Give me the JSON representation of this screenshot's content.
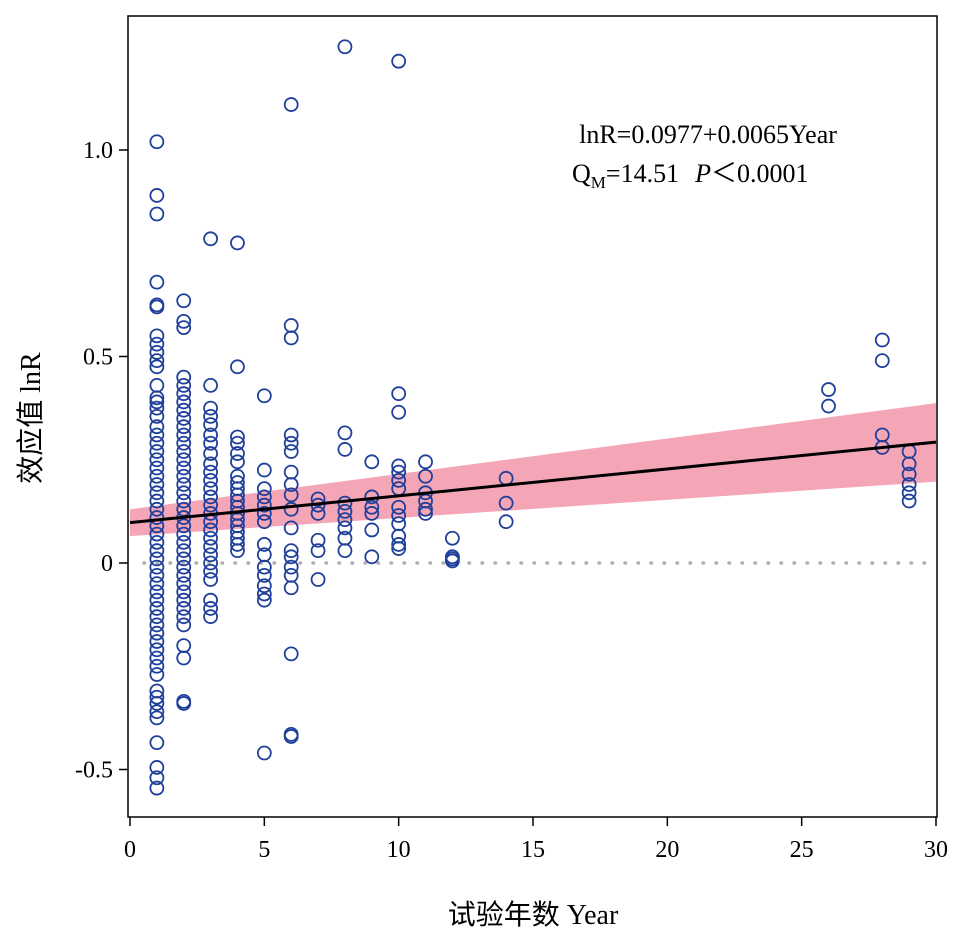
{
  "chart_data": {
    "type": "scatter",
    "xlabel": "试验年数 Year",
    "ylabel": "效应值 lnR",
    "xlim": [
      0,
      30
    ],
    "ylim": [
      -0.56,
      1.3
    ],
    "x_ticks": [
      {
        "value": 0,
        "label": "0"
      },
      {
        "value": 5,
        "label": "5"
      },
      {
        "value": 10,
        "label": "10"
      },
      {
        "value": 15,
        "label": "15"
      },
      {
        "value": 20,
        "label": "20"
      },
      {
        "value": 25,
        "label": "25"
      },
      {
        "value": 30,
        "label": "30"
      }
    ],
    "y_ticks": [
      {
        "value": -0.5,
        "label": "-0.5"
      },
      {
        "value": 0,
        "label": "0"
      },
      {
        "value": 0.5,
        "label": "0.5"
      },
      {
        "value": 1.0,
        "label": "1.0"
      }
    ],
    "annotation": {
      "line1": "lnR=0.0977+0.0065Year",
      "qm_prefix": "Q",
      "qm_sub": "M",
      "qm_value": "=14.51",
      "p_label": "P",
      "p_value": "＜0.0001"
    },
    "regression": {
      "intercept": 0.0977,
      "slope": 0.0065,
      "x_range": [
        0,
        30
      ]
    },
    "confidence_band": {
      "x": [
        0,
        30
      ],
      "lower": [
        0.065,
        0.197
      ],
      "upper": [
        0.13,
        0.387
      ]
    },
    "reference_line": {
      "y": 0
    },
    "colors": {
      "points": "#1f3f9a",
      "band": "#f4a6b7",
      "line": "#000000",
      "reference": "#b0b0b0",
      "frame": "#000000"
    },
    "points": [
      {
        "x": 1,
        "y": 1.02
      },
      {
        "x": 1,
        "y": 0.89
      },
      {
        "x": 1,
        "y": 0.845
      },
      {
        "x": 1,
        "y": 0.68
      },
      {
        "x": 1,
        "y": 0.625
      },
      {
        "x": 1,
        "y": 0.62
      },
      {
        "x": 1,
        "y": 0.55
      },
      {
        "x": 1,
        "y": 0.53
      },
      {
        "x": 1,
        "y": 0.51
      },
      {
        "x": 1,
        "y": 0.49
      },
      {
        "x": 1,
        "y": 0.475
      },
      {
        "x": 1,
        "y": 0.43
      },
      {
        "x": 1,
        "y": 0.4
      },
      {
        "x": 1,
        "y": 0.39
      },
      {
        "x": 1,
        "y": 0.375
      },
      {
        "x": 1,
        "y": 0.355
      },
      {
        "x": 1,
        "y": 0.33
      },
      {
        "x": 1,
        "y": 0.31
      },
      {
        "x": 1,
        "y": 0.29
      },
      {
        "x": 1,
        "y": 0.27
      },
      {
        "x": 1,
        "y": 0.25
      },
      {
        "x": 1,
        "y": 0.23
      },
      {
        "x": 1,
        "y": 0.21
      },
      {
        "x": 1,
        "y": 0.19
      },
      {
        "x": 1,
        "y": 0.17
      },
      {
        "x": 1,
        "y": 0.15
      },
      {
        "x": 1,
        "y": 0.13
      },
      {
        "x": 1,
        "y": 0.11
      },
      {
        "x": 1,
        "y": 0.09
      },
      {
        "x": 1,
        "y": 0.07
      },
      {
        "x": 1,
        "y": 0.05
      },
      {
        "x": 1,
        "y": 0.03
      },
      {
        "x": 1,
        "y": 0.01
      },
      {
        "x": 1,
        "y": -0.01
      },
      {
        "x": 1,
        "y": -0.03
      },
      {
        "x": 1,
        "y": -0.05
      },
      {
        "x": 1,
        "y": -0.07
      },
      {
        "x": 1,
        "y": -0.09
      },
      {
        "x": 1,
        "y": -0.11
      },
      {
        "x": 1,
        "y": -0.13
      },
      {
        "x": 1,
        "y": -0.15
      },
      {
        "x": 1,
        "y": -0.17
      },
      {
        "x": 1,
        "y": -0.19
      },
      {
        "x": 1,
        "y": -0.21
      },
      {
        "x": 1,
        "y": -0.23
      },
      {
        "x": 1,
        "y": -0.25
      },
      {
        "x": 1,
        "y": -0.27
      },
      {
        "x": 1,
        "y": -0.31
      },
      {
        "x": 1,
        "y": -0.325
      },
      {
        "x": 1,
        "y": -0.34
      },
      {
        "x": 1,
        "y": -0.36
      },
      {
        "x": 1,
        "y": -0.375
      },
      {
        "x": 1,
        "y": -0.435
      },
      {
        "x": 1,
        "y": -0.495
      },
      {
        "x": 1,
        "y": -0.52
      },
      {
        "x": 1,
        "y": -0.545
      },
      {
        "x": 2,
        "y": 0.635
      },
      {
        "x": 2,
        "y": 0.585
      },
      {
        "x": 2,
        "y": 0.57
      },
      {
        "x": 2,
        "y": 0.45
      },
      {
        "x": 2,
        "y": 0.43
      },
      {
        "x": 2,
        "y": 0.41
      },
      {
        "x": 2,
        "y": 0.39
      },
      {
        "x": 2,
        "y": 0.37
      },
      {
        "x": 2,
        "y": 0.35
      },
      {
        "x": 2,
        "y": 0.33
      },
      {
        "x": 2,
        "y": 0.31
      },
      {
        "x": 2,
        "y": 0.29
      },
      {
        "x": 2,
        "y": 0.27
      },
      {
        "x": 2,
        "y": 0.25
      },
      {
        "x": 2,
        "y": 0.23
      },
      {
        "x": 2,
        "y": 0.21
      },
      {
        "x": 2,
        "y": 0.19
      },
      {
        "x": 2,
        "y": 0.17
      },
      {
        "x": 2,
        "y": 0.15
      },
      {
        "x": 2,
        "y": 0.13
      },
      {
        "x": 2,
        "y": 0.11
      },
      {
        "x": 2,
        "y": 0.09
      },
      {
        "x": 2,
        "y": 0.07
      },
      {
        "x": 2,
        "y": 0.05
      },
      {
        "x": 2,
        "y": 0.03
      },
      {
        "x": 2,
        "y": 0.01
      },
      {
        "x": 2,
        "y": -0.01
      },
      {
        "x": 2,
        "y": -0.03
      },
      {
        "x": 2,
        "y": -0.05
      },
      {
        "x": 2,
        "y": -0.07
      },
      {
        "x": 2,
        "y": -0.09
      },
      {
        "x": 2,
        "y": -0.11
      },
      {
        "x": 2,
        "y": -0.13
      },
      {
        "x": 2,
        "y": -0.15
      },
      {
        "x": 2,
        "y": -0.2
      },
      {
        "x": 2,
        "y": -0.23
      },
      {
        "x": 2,
        "y": -0.335
      },
      {
        "x": 2,
        "y": -0.34
      },
      {
        "x": 3,
        "y": 0.785
      },
      {
        "x": 3,
        "y": 0.43
      },
      {
        "x": 3,
        "y": 0.375
      },
      {
        "x": 3,
        "y": 0.355
      },
      {
        "x": 3,
        "y": 0.335
      },
      {
        "x": 3,
        "y": 0.31
      },
      {
        "x": 3,
        "y": 0.29
      },
      {
        "x": 3,
        "y": 0.265
      },
      {
        "x": 3,
        "y": 0.24
      },
      {
        "x": 3,
        "y": 0.22
      },
      {
        "x": 3,
        "y": 0.2
      },
      {
        "x": 3,
        "y": 0.18
      },
      {
        "x": 3,
        "y": 0.16
      },
      {
        "x": 3,
        "y": 0.14
      },
      {
        "x": 3,
        "y": 0.12
      },
      {
        "x": 3,
        "y": 0.1
      },
      {
        "x": 3,
        "y": 0.08
      },
      {
        "x": 3,
        "y": 0.06
      },
      {
        "x": 3,
        "y": 0.04
      },
      {
        "x": 3,
        "y": 0.02
      },
      {
        "x": 3,
        "y": 0.0
      },
      {
        "x": 3,
        "y": -0.02
      },
      {
        "x": 3,
        "y": -0.04
      },
      {
        "x": 3,
        "y": -0.09
      },
      {
        "x": 3,
        "y": -0.11
      },
      {
        "x": 3,
        "y": -0.13
      },
      {
        "x": 4,
        "y": 0.775
      },
      {
        "x": 4,
        "y": 0.475
      },
      {
        "x": 4,
        "y": 0.305
      },
      {
        "x": 4,
        "y": 0.29
      },
      {
        "x": 4,
        "y": 0.265
      },
      {
        "x": 4,
        "y": 0.245
      },
      {
        "x": 4,
        "y": 0.21
      },
      {
        "x": 4,
        "y": 0.195
      },
      {
        "x": 4,
        "y": 0.18
      },
      {
        "x": 4,
        "y": 0.165
      },
      {
        "x": 4,
        "y": 0.15
      },
      {
        "x": 4,
        "y": 0.135
      },
      {
        "x": 4,
        "y": 0.12
      },
      {
        "x": 4,
        "y": 0.105
      },
      {
        "x": 4,
        "y": 0.09
      },
      {
        "x": 4,
        "y": 0.075
      },
      {
        "x": 4,
        "y": 0.06
      },
      {
        "x": 4,
        "y": 0.045
      },
      {
        "x": 4,
        "y": 0.03
      },
      {
        "x": 5,
        "y": 0.405
      },
      {
        "x": 5,
        "y": 0.225
      },
      {
        "x": 5,
        "y": 0.18
      },
      {
        "x": 5,
        "y": 0.16
      },
      {
        "x": 5,
        "y": 0.14
      },
      {
        "x": 5,
        "y": 0.12
      },
      {
        "x": 5,
        "y": 0.1
      },
      {
        "x": 5,
        "y": 0.045
      },
      {
        "x": 5,
        "y": 0.02
      },
      {
        "x": 5,
        "y": -0.01
      },
      {
        "x": 5,
        "y": -0.03
      },
      {
        "x": 5,
        "y": -0.055
      },
      {
        "x": 5,
        "y": -0.075
      },
      {
        "x": 5,
        "y": -0.09
      },
      {
        "x": 5,
        "y": -0.46
      },
      {
        "x": 6,
        "y": 1.11
      },
      {
        "x": 6,
        "y": 0.575
      },
      {
        "x": 6,
        "y": 0.545
      },
      {
        "x": 6,
        "y": 0.31
      },
      {
        "x": 6,
        "y": 0.29
      },
      {
        "x": 6,
        "y": 0.27
      },
      {
        "x": 6,
        "y": 0.22
      },
      {
        "x": 6,
        "y": 0.19
      },
      {
        "x": 6,
        "y": 0.165
      },
      {
        "x": 6,
        "y": 0.13
      },
      {
        "x": 6,
        "y": 0.085
      },
      {
        "x": 6,
        "y": 0.03
      },
      {
        "x": 6,
        "y": 0.015
      },
      {
        "x": 6,
        "y": -0.01
      },
      {
        "x": 6,
        "y": -0.03
      },
      {
        "x": 6,
        "y": -0.06
      },
      {
        "x": 6,
        "y": -0.22
      },
      {
        "x": 6,
        "y": -0.415
      },
      {
        "x": 6,
        "y": -0.42
      },
      {
        "x": 7,
        "y": 0.155
      },
      {
        "x": 7,
        "y": 0.14
      },
      {
        "x": 7,
        "y": 0.12
      },
      {
        "x": 7,
        "y": 0.055
      },
      {
        "x": 7,
        "y": 0.03
      },
      {
        "x": 7,
        "y": -0.04
      },
      {
        "x": 8,
        "y": 1.25
      },
      {
        "x": 8,
        "y": 0.315
      },
      {
        "x": 8,
        "y": 0.275
      },
      {
        "x": 8,
        "y": 0.145
      },
      {
        "x": 8,
        "y": 0.125
      },
      {
        "x": 8,
        "y": 0.105
      },
      {
        "x": 8,
        "y": 0.085
      },
      {
        "x": 8,
        "y": 0.06
      },
      {
        "x": 8,
        "y": 0.03
      },
      {
        "x": 9,
        "y": 0.245
      },
      {
        "x": 9,
        "y": 0.16
      },
      {
        "x": 9,
        "y": 0.135
      },
      {
        "x": 9,
        "y": 0.12
      },
      {
        "x": 9,
        "y": 0.08
      },
      {
        "x": 9,
        "y": 0.015
      },
      {
        "x": 10,
        "y": 1.215
      },
      {
        "x": 10,
        "y": 0.41
      },
      {
        "x": 10,
        "y": 0.365
      },
      {
        "x": 10,
        "y": 0.235
      },
      {
        "x": 10,
        "y": 0.22
      },
      {
        "x": 10,
        "y": 0.2
      },
      {
        "x": 10,
        "y": 0.18
      },
      {
        "x": 10,
        "y": 0.135
      },
      {
        "x": 10,
        "y": 0.115
      },
      {
        "x": 10,
        "y": 0.095
      },
      {
        "x": 10,
        "y": 0.065
      },
      {
        "x": 10,
        "y": 0.045
      },
      {
        "x": 10,
        "y": 0.035
      },
      {
        "x": 11,
        "y": 0.245
      },
      {
        "x": 11,
        "y": 0.21
      },
      {
        "x": 11,
        "y": 0.17
      },
      {
        "x": 11,
        "y": 0.15
      },
      {
        "x": 11,
        "y": 0.13
      },
      {
        "x": 11,
        "y": 0.12
      },
      {
        "x": 12,
        "y": 0.06
      },
      {
        "x": 12,
        "y": 0.015
      },
      {
        "x": 12,
        "y": 0.01
      },
      {
        "x": 12,
        "y": 0.005
      },
      {
        "x": 14,
        "y": 0.205
      },
      {
        "x": 14,
        "y": 0.145
      },
      {
        "x": 14,
        "y": 0.1
      },
      {
        "x": 26,
        "y": 0.42
      },
      {
        "x": 26,
        "y": 0.38
      },
      {
        "x": 28,
        "y": 0.54
      },
      {
        "x": 28,
        "y": 0.49
      },
      {
        "x": 28,
        "y": 0.31
      },
      {
        "x": 28,
        "y": 0.28
      },
      {
        "x": 29,
        "y": 0.27
      },
      {
        "x": 29,
        "y": 0.24
      },
      {
        "x": 29,
        "y": 0.215
      },
      {
        "x": 29,
        "y": 0.19
      },
      {
        "x": 29,
        "y": 0.17
      },
      {
        "x": 29,
        "y": 0.15
      }
    ]
  }
}
